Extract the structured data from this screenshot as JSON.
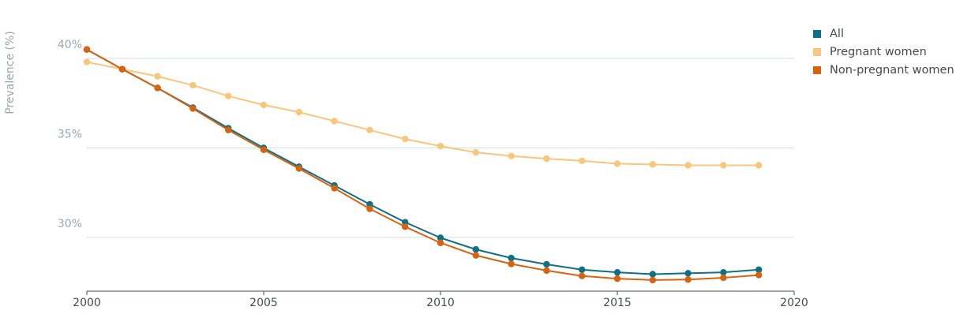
{
  "chart_data": {
    "type": "line",
    "title": "",
    "xlabel": "",
    "ylabel": "Prevalence (%)",
    "x": [
      2000,
      2001,
      2002,
      2003,
      2004,
      2005,
      2006,
      2007,
      2008,
      2009,
      2010,
      2011,
      2012,
      2013,
      2014,
      2015,
      2016,
      2017,
      2018,
      2019
    ],
    "xlim": [
      2000,
      2020
    ],
    "ylim": [
      27.0,
      41.5
    ],
    "x_ticks": [
      {
        "value": 2000,
        "label": "2000"
      },
      {
        "value": 2005,
        "label": "2005"
      },
      {
        "value": 2010,
        "label": "2010"
      },
      {
        "value": 2015,
        "label": "2015"
      },
      {
        "value": 2020,
        "label": "2020"
      }
    ],
    "y_ticks": [
      {
        "value": 30,
        "label": "30%"
      },
      {
        "value": 35,
        "label": "35%"
      },
      {
        "value": 40,
        "label": "40%"
      }
    ],
    "grid": "horizontal",
    "legend_position": "top-right",
    "series": [
      {
        "name": "Pregnant women",
        "color": "#f9c77b",
        "values": [
          39.8,
          39.4,
          39.0,
          38.5,
          37.9,
          37.4,
          37.0,
          36.5,
          36.0,
          35.5,
          35.1,
          34.75,
          34.55,
          34.4,
          34.28,
          34.12,
          34.08,
          34.03,
          34.03,
          34.03
        ]
      },
      {
        "name": "All",
        "color": "#0f6f86",
        "values": [
          40.5,
          39.4,
          38.35,
          37.25,
          36.1,
          35.0,
          33.95,
          32.9,
          31.85,
          30.85,
          29.98,
          29.33,
          28.85,
          28.5,
          28.2,
          28.05,
          27.95,
          28.0,
          28.05,
          28.2
        ]
      },
      {
        "name": "Non-pregnant women",
        "color": "#d9620f",
        "values": [
          40.5,
          39.4,
          38.35,
          37.2,
          36.0,
          34.9,
          33.85,
          32.75,
          31.6,
          30.6,
          29.7,
          29.0,
          28.52,
          28.15,
          27.85,
          27.7,
          27.62,
          27.65,
          27.75,
          27.9
        ]
      }
    ],
    "legend": [
      {
        "name": "All",
        "color": "#0f6f86"
      },
      {
        "name": "Pregnant women",
        "color": "#f9c77b"
      },
      {
        "name": "Non-pregnant women",
        "color": "#d9620f"
      }
    ]
  }
}
